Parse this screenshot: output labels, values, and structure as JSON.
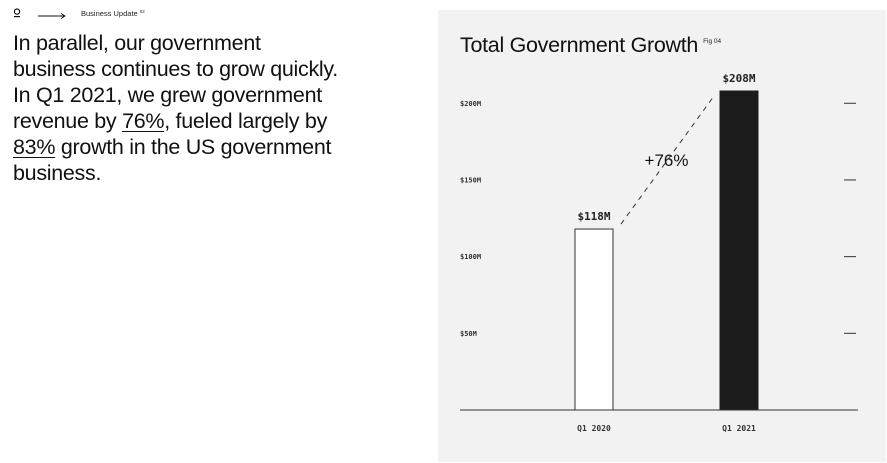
{
  "header": {
    "breadcrumb": "Business Update",
    "section_number": "02"
  },
  "headline": {
    "p1": "In parallel, our government business continues to grow quickly. In Q1 2021, we grew government revenue by ",
    "h1": "76%",
    "p2": ", fueled largely by ",
    "h2": "83%",
    "p3": " growth in the US government business."
  },
  "colors": {
    "panel_bg": "#f2f2f2",
    "bar_dark": "#1b1b1b",
    "bar_light": "#ffffff",
    "ink": "#111111"
  },
  "chart_data": {
    "type": "bar",
    "title": "Total Government Growth",
    "figure_label": "Fig 04",
    "categories": [
      "Q1 2020",
      "Q1 2021"
    ],
    "values": [
      118,
      208
    ],
    "value_labels": [
      "$118M",
      "$208M"
    ],
    "ylabel": "",
    "xlabel": "",
    "ylim": [
      0,
      208
    ],
    "yticks": [
      50,
      100,
      150,
      200
    ],
    "ytick_labels": [
      "$50M",
      "$100M",
      "$150M",
      "$200M"
    ],
    "growth_annotation": "+76%"
  }
}
